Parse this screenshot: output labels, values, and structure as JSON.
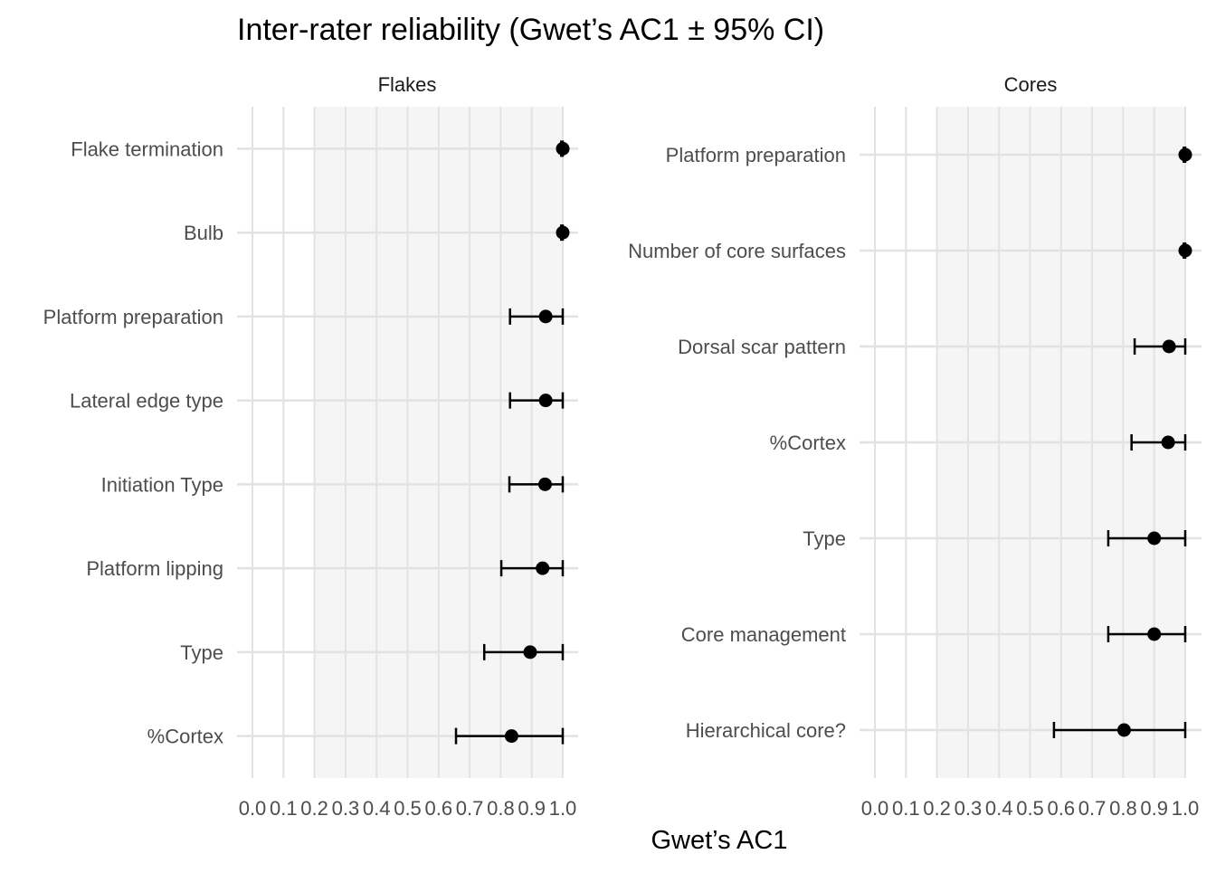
{
  "title": "Inter-rater reliability (Gwet’s AC1 ± 95% CI)",
  "xlabel": "Gwet’s AC1",
  "colors": {
    "shade": "#f5f5f5",
    "grid": "#e2e2e2",
    "point": "#000000"
  },
  "chart_data": [
    {
      "type": "scatter",
      "panel": "Flakes",
      "xlim": [
        0,
        1
      ],
      "x_ticks": [
        "0.0",
        "0.1",
        "0.2",
        "0.3",
        "0.4",
        "0.5",
        "0.6",
        "0.7",
        "0.8",
        "0.9",
        "1.0"
      ],
      "shaded_range": [
        0.2,
        1.0
      ],
      "error_bars": "95% CI",
      "categories": [
        "Flake termination",
        "Bulb",
        "Platform preparation",
        "Lateral edge type",
        "Initiation Type",
        "Platform lipping",
        "Type",
        "%Cortex"
      ],
      "values": [
        1.0,
        1.0,
        0.945,
        0.945,
        0.943,
        0.935,
        0.895,
        0.835
      ],
      "lower": [
        0.995,
        0.995,
        0.83,
        0.83,
        0.828,
        0.802,
        0.747,
        0.656
      ],
      "upper": [
        1.0,
        1.0,
        1.0,
        1.0,
        1.0,
        1.0,
        1.0,
        1.0
      ]
    },
    {
      "type": "scatter",
      "panel": "Cores",
      "xlim": [
        0,
        1
      ],
      "x_ticks": [
        "0.0",
        "0.1",
        "0.2",
        "0.3",
        "0.4",
        "0.5",
        "0.6",
        "0.7",
        "0.8",
        "0.9",
        "1.0"
      ],
      "shaded_range": [
        0.2,
        1.0
      ],
      "error_bars": "95% CI",
      "categories": [
        "Platform preparation",
        "Number of core surfaces",
        "Dorsal scar pattern",
        "%Cortex",
        "Type",
        "Core management",
        "Hierarchical core?"
      ],
      "values": [
        1.0,
        1.0,
        0.948,
        0.945,
        0.9,
        0.9,
        0.803
      ],
      "lower": [
        0.995,
        0.995,
        0.837,
        0.827,
        0.752,
        0.752,
        0.577
      ],
      "upper": [
        1.0,
        1.0,
        1.0,
        1.0,
        1.0,
        1.0,
        1.0
      ]
    }
  ]
}
